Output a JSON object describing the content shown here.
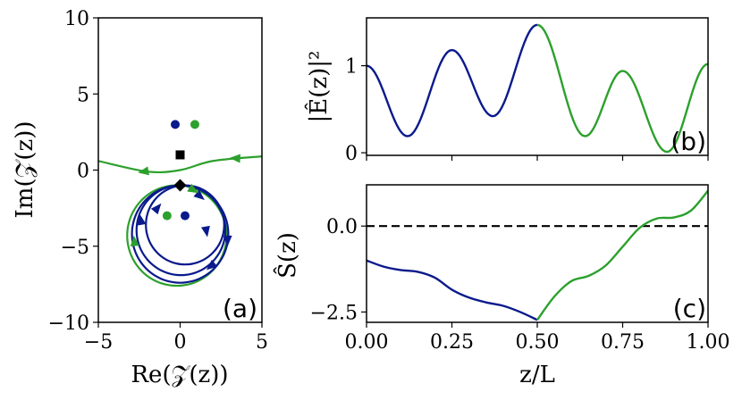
{
  "colors": {
    "blue": "#0a1a8c",
    "green": "#2ca02c",
    "black": "#000000"
  },
  "chart_data": [
    {
      "panel": "(a)",
      "type": "scatter",
      "xlabel": "Re(𝒵(z))",
      "ylabel": "Im(𝒵(z))",
      "xlim": [
        -5,
        5
      ],
      "ylim": [
        -10,
        10
      ],
      "xticks": [
        -5,
        0,
        5
      ],
      "xtick_labels": [
        "−5",
        "0",
        "5"
      ],
      "yticks": [
        -10,
        -5,
        0,
        5,
        10
      ],
      "ytick_labels": [
        "−10",
        "−5",
        "0",
        "5",
        "10"
      ],
      "points": [
        {
          "name": "blue-pole-upper",
          "x": -0.3,
          "y": 3.0,
          "color": "blue",
          "marker": "circle"
        },
        {
          "name": "green-pole-upper",
          "x": 0.9,
          "y": 3.0,
          "color": "green",
          "marker": "circle"
        },
        {
          "name": "square-marker",
          "x": 0.0,
          "y": 1.0,
          "color": "black",
          "marker": "square"
        },
        {
          "name": "diamond-marker",
          "x": 0.0,
          "y": -1.0,
          "color": "black",
          "marker": "diamond"
        },
        {
          "name": "green-pole-lower",
          "x": -0.8,
          "y": -3.0,
          "color": "green",
          "marker": "circle"
        },
        {
          "name": "blue-pole-lower",
          "x": 0.3,
          "y": -3.0,
          "color": "blue",
          "marker": "circle"
        }
      ],
      "curves": [
        {
          "name": "green-upper-branch",
          "color": "green",
          "x": [
            5.0,
            2.0,
            0.0,
            -2.0,
            -5.0
          ],
          "y": [
            0.9,
            0.6,
            0.0,
            -0.1,
            0.6
          ]
        },
        {
          "name": "green-loop",
          "color": "green",
          "description": "closed orbit from (0,-1)"
        },
        {
          "name": "blue-loops",
          "color": "blue",
          "description": "three nested orbits from (0,-1)"
        }
      ]
    },
    {
      "panel": "(b)",
      "type": "line",
      "ylabel": "|Ê(z)|²",
      "xlim": [
        0,
        1
      ],
      "ylim": [
        -0.03,
        1.55
      ],
      "yticks": [
        0,
        1
      ],
      "ytick_labels": [
        "0",
        "1"
      ],
      "series": [
        {
          "name": "blue",
          "color": "blue",
          "x": [
            0.0,
            0.12,
            0.25,
            0.37,
            0.5
          ],
          "y": [
            1.0,
            0.19,
            1.18,
            0.42,
            1.47
          ]
        },
        {
          "name": "green",
          "color": "green",
          "x": [
            0.5,
            0.64,
            0.75,
            0.88,
            1.0
          ],
          "y": [
            1.47,
            0.19,
            0.94,
            0.01,
            1.02
          ]
        }
      ]
    },
    {
      "panel": "(c)",
      "type": "line",
      "xlabel": "z/L",
      "ylabel": "Ŝ(z)",
      "xlim": [
        0,
        1
      ],
      "ylim": [
        -2.8,
        1.2
      ],
      "xticks": [
        0,
        0.25,
        0.5,
        0.75,
        1.0
      ],
      "xtick_labels": [
        "0.00",
        "0.25",
        "0.50",
        "0.75",
        "1.00"
      ],
      "yticks": [
        -2.5,
        0
      ],
      "ytick_labels": [
        "−2.5",
        "0.0"
      ],
      "reference_line": {
        "y": 0,
        "style": "dashed",
        "color": "black"
      },
      "series": [
        {
          "name": "blue",
          "color": "blue",
          "x": [
            0.0,
            0.05,
            0.1,
            0.15,
            0.2,
            0.25,
            0.3,
            0.35,
            0.4,
            0.45,
            0.5
          ],
          "y": [
            -1.0,
            -1.18,
            -1.28,
            -1.33,
            -1.5,
            -1.85,
            -2.08,
            -2.22,
            -2.32,
            -2.5,
            -2.73
          ]
        },
        {
          "name": "green",
          "color": "green",
          "x": [
            0.5,
            0.55,
            0.6,
            0.65,
            0.7,
            0.75,
            0.8,
            0.85,
            0.9,
            0.95,
            1.0
          ],
          "y": [
            -2.73,
            -2.05,
            -1.6,
            -1.45,
            -1.15,
            -0.6,
            -0.05,
            0.22,
            0.25,
            0.45,
            1.03
          ]
        }
      ]
    }
  ]
}
